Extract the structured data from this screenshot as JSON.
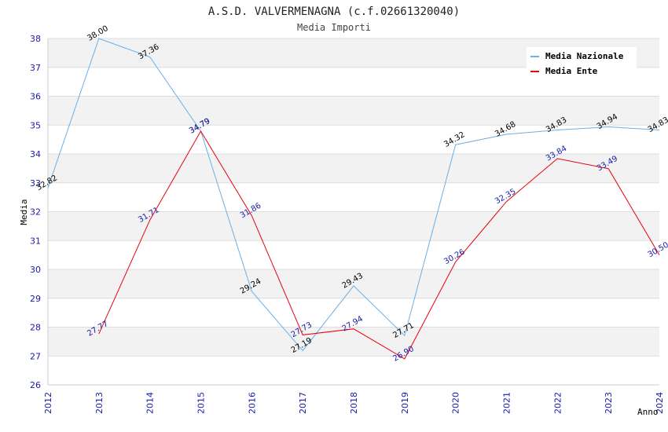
{
  "chart_data": {
    "type": "line",
    "title": "A.S.D. VALVERMENAGNA (c.f.02661320040)",
    "subtitle": "Media Importi",
    "xlabel": "Anno",
    "ylabel": "Media",
    "ylim": [
      26,
      38
    ],
    "x": [
      "2012",
      "2013",
      "2014",
      "2015",
      "2016",
      "2017",
      "2018",
      "2019",
      "2020",
      "2021",
      "2022",
      "2023",
      "2024"
    ],
    "yticks": [
      "26",
      "27",
      "28",
      "29",
      "30",
      "31",
      "32",
      "33",
      "34",
      "35",
      "36",
      "37",
      "38"
    ],
    "series": [
      {
        "name": "Media Nazionale",
        "color": "#6aaee6",
        "labelColor": "#000000",
        "x": [
          "2012",
          "2013",
          "2014",
          "2015",
          "2016",
          "2017",
          "2018",
          "2019",
          "2020",
          "2021",
          "2022",
          "2023",
          "2024"
        ],
        "values": [
          32.82,
          38.0,
          37.36,
          34.79,
          29.24,
          27.19,
          29.43,
          27.71,
          34.32,
          34.68,
          34.83,
          34.94,
          34.83
        ],
        "labels": [
          "32.82",
          "38.00",
          "37.36",
          "34.79",
          "29.24",
          "27.19",
          "29.43",
          "27.71",
          "34.32",
          "34.68",
          "34.83",
          "34.94",
          "34.83"
        ]
      },
      {
        "name": "Media Ente",
        "color": "#e8000b",
        "labelColor": "#1a1aaa",
        "x": [
          "2013",
          "2014",
          "2015",
          "2016",
          "2017",
          "2018",
          "2019",
          "2020",
          "2021",
          "2022",
          "2023",
          "2024"
        ],
        "values": [
          27.77,
          31.71,
          34.79,
          31.86,
          27.73,
          27.94,
          26.9,
          30.26,
          32.35,
          33.84,
          33.49,
          30.5
        ],
        "labels": [
          "27.77",
          "31.71",
          "34.79",
          "31.86",
          "27.73",
          "27.94",
          "26.90",
          "30.26",
          "32.35",
          "33.84",
          "33.49",
          "30.50"
        ]
      }
    ],
    "legend_position": "top-right",
    "grid": true
  }
}
